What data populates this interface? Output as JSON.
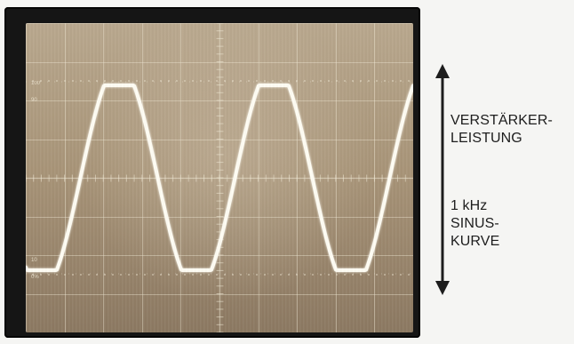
{
  "labels": {
    "amplifier_line_1": "VERSTÄRKER-",
    "amplifier_line_2": "LEISTUNG",
    "signal_line_1": "1 kHz",
    "signal_line_2": "SINUS-",
    "signal_line_3": "KURVE"
  },
  "colors": {
    "background": "#f5f5f3",
    "bezel": "#151515",
    "screen_top": "#b9a88e",
    "screen_bottom": "#8c7962",
    "trace": "#fffdf4",
    "grid": "#f1ead6",
    "text": "#1d1d1d"
  }
}
